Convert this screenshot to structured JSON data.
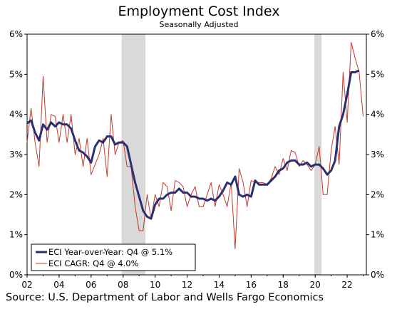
{
  "chart_data": {
    "type": "line",
    "title": "Employment Cost Index",
    "subtitle": "Seasonally Adjusted",
    "ylim": [
      0,
      6
    ],
    "xlim": [
      2002,
      2023.2
    ],
    "y_ticks": [
      "0%",
      "1%",
      "2%",
      "3%",
      "4%",
      "5%",
      "6%"
    ],
    "x_ticks": [
      "02",
      "04",
      "06",
      "08",
      "10",
      "12",
      "14",
      "16",
      "18",
      "20",
      "22"
    ],
    "recessions": [
      [
        2007.9,
        2009.4
      ],
      [
        2019.95,
        2020.4
      ]
    ],
    "colors": {
      "yoy": "#2b2f6f",
      "cagr": "#c0392b",
      "recession": "#d9d9d9"
    },
    "legend_position": "bottom-left",
    "series": [
      {
        "name": "ECI Year-over-Year: Q4 @ 5.1%",
        "values": [
          [
            2002.0,
            3.78
          ],
          [
            2002.25,
            3.85
          ],
          [
            2002.5,
            3.55
          ],
          [
            2002.75,
            3.35
          ],
          [
            2003.0,
            3.75
          ],
          [
            2003.25,
            3.62
          ],
          [
            2003.5,
            3.8
          ],
          [
            2003.75,
            3.7
          ],
          [
            2004.0,
            3.8
          ],
          [
            2004.25,
            3.75
          ],
          [
            2004.5,
            3.75
          ],
          [
            2004.75,
            3.65
          ],
          [
            2005.0,
            3.35
          ],
          [
            2005.25,
            3.1
          ],
          [
            2005.5,
            3.05
          ],
          [
            2005.75,
            2.95
          ],
          [
            2006.0,
            2.8
          ],
          [
            2006.25,
            3.2
          ],
          [
            2006.5,
            3.35
          ],
          [
            2006.75,
            3.3
          ],
          [
            2007.0,
            3.45
          ],
          [
            2007.25,
            3.45
          ],
          [
            2007.5,
            3.25
          ],
          [
            2007.75,
            3.3
          ],
          [
            2008.0,
            3.3
          ],
          [
            2008.25,
            3.2
          ],
          [
            2008.5,
            2.75
          ],
          [
            2008.75,
            2.3
          ],
          [
            2009.0,
            1.95
          ],
          [
            2009.25,
            1.6
          ],
          [
            2009.5,
            1.45
          ],
          [
            2009.75,
            1.4
          ],
          [
            2010.0,
            1.75
          ],
          [
            2010.25,
            1.9
          ],
          [
            2010.5,
            1.9
          ],
          [
            2010.75,
            2.0
          ],
          [
            2011.0,
            2.05
          ],
          [
            2011.25,
            2.05
          ],
          [
            2011.5,
            2.15
          ],
          [
            2011.75,
            2.05
          ],
          [
            2012.0,
            2.05
          ],
          [
            2012.25,
            1.95
          ],
          [
            2012.5,
            1.95
          ],
          [
            2012.75,
            1.9
          ],
          [
            2013.0,
            1.9
          ],
          [
            2013.25,
            1.85
          ],
          [
            2013.5,
            1.9
          ],
          [
            2013.75,
            1.85
          ],
          [
            2014.0,
            1.95
          ],
          [
            2014.25,
            2.1
          ],
          [
            2014.5,
            2.3
          ],
          [
            2014.75,
            2.25
          ],
          [
            2015.0,
            2.45
          ],
          [
            2015.25,
            2.0
          ],
          [
            2015.5,
            1.95
          ],
          [
            2015.75,
            2.0
          ],
          [
            2016.0,
            1.95
          ],
          [
            2016.25,
            2.35
          ],
          [
            2016.5,
            2.25
          ],
          [
            2016.75,
            2.25
          ],
          [
            2017.0,
            2.25
          ],
          [
            2017.25,
            2.35
          ],
          [
            2017.5,
            2.45
          ],
          [
            2017.75,
            2.6
          ],
          [
            2018.0,
            2.65
          ],
          [
            2018.25,
            2.8
          ],
          [
            2018.5,
            2.85
          ],
          [
            2018.75,
            2.85
          ],
          [
            2019.0,
            2.75
          ],
          [
            2019.25,
            2.75
          ],
          [
            2019.5,
            2.8
          ],
          [
            2019.75,
            2.7
          ],
          [
            2020.0,
            2.75
          ],
          [
            2020.25,
            2.75
          ],
          [
            2020.5,
            2.65
          ],
          [
            2020.75,
            2.5
          ],
          [
            2021.0,
            2.6
          ],
          [
            2021.25,
            2.85
          ],
          [
            2021.5,
            3.7
          ],
          [
            2021.75,
            4.0
          ],
          [
            2022.0,
            4.5
          ],
          [
            2022.25,
            5.05
          ],
          [
            2022.5,
            5.05
          ],
          [
            2022.75,
            5.1
          ]
        ]
      },
      {
        "name": "ECI CAGR: Q4 @ 4.0%",
        "values": [
          [
            2002.0,
            3.3
          ],
          [
            2002.25,
            4.15
          ],
          [
            2002.5,
            3.3
          ],
          [
            2002.75,
            2.7
          ],
          [
            2003.0,
            4.95
          ],
          [
            2003.25,
            3.3
          ],
          [
            2003.5,
            4.0
          ],
          [
            2003.75,
            3.95
          ],
          [
            2004.0,
            3.3
          ],
          [
            2004.25,
            4.0
          ],
          [
            2004.5,
            3.3
          ],
          [
            2004.75,
            4.0
          ],
          [
            2005.0,
            3.0
          ],
          [
            2005.25,
            3.4
          ],
          [
            2005.5,
            2.7
          ],
          [
            2005.75,
            3.4
          ],
          [
            2006.0,
            2.5
          ],
          [
            2006.25,
            2.75
          ],
          [
            2006.5,
            3.0
          ],
          [
            2006.75,
            3.4
          ],
          [
            2007.0,
            2.45
          ],
          [
            2007.25,
            4.0
          ],
          [
            2007.5,
            3.0
          ],
          [
            2007.75,
            3.3
          ],
          [
            2008.0,
            3.35
          ],
          [
            2008.25,
            2.7
          ],
          [
            2008.5,
            2.7
          ],
          [
            2008.75,
            1.7
          ],
          [
            2009.0,
            1.1
          ],
          [
            2009.25,
            1.1
          ],
          [
            2009.5,
            2.0
          ],
          [
            2009.75,
            1.4
          ],
          [
            2010.0,
            2.0
          ],
          [
            2010.25,
            1.7
          ],
          [
            2010.5,
            2.3
          ],
          [
            2010.75,
            2.2
          ],
          [
            2011.0,
            1.6
          ],
          [
            2011.25,
            2.35
          ],
          [
            2011.5,
            2.3
          ],
          [
            2011.75,
            2.2
          ],
          [
            2012.0,
            1.7
          ],
          [
            2012.25,
            2.0
          ],
          [
            2012.5,
            2.2
          ],
          [
            2012.75,
            1.7
          ],
          [
            2013.0,
            1.7
          ],
          [
            2013.25,
            2.0
          ],
          [
            2013.5,
            2.3
          ],
          [
            2013.75,
            1.7
          ],
          [
            2014.0,
            2.25
          ],
          [
            2014.25,
            2.0
          ],
          [
            2014.5,
            1.7
          ],
          [
            2014.75,
            2.3
          ],
          [
            2015.0,
            0.65
          ],
          [
            2015.25,
            2.65
          ],
          [
            2015.5,
            2.3
          ],
          [
            2015.75,
            1.7
          ],
          [
            2016.0,
            2.35
          ],
          [
            2016.25,
            2.3
          ],
          [
            2016.5,
            2.3
          ],
          [
            2016.75,
            2.3
          ],
          [
            2017.0,
            2.25
          ],
          [
            2017.25,
            2.4
          ],
          [
            2017.5,
            2.7
          ],
          [
            2017.75,
            2.5
          ],
          [
            2018.0,
            2.9
          ],
          [
            2018.25,
            2.6
          ],
          [
            2018.5,
            3.1
          ],
          [
            2018.75,
            3.05
          ],
          [
            2019.0,
            2.7
          ],
          [
            2019.25,
            2.85
          ],
          [
            2019.5,
            2.75
          ],
          [
            2019.75,
            2.6
          ],
          [
            2020.0,
            2.75
          ],
          [
            2020.25,
            3.2
          ],
          [
            2020.5,
            2.0
          ],
          [
            2020.75,
            2.0
          ],
          [
            2021.0,
            3.1
          ],
          [
            2021.25,
            3.7
          ],
          [
            2021.5,
            2.75
          ],
          [
            2021.75,
            5.05
          ],
          [
            2022.0,
            3.8
          ],
          [
            2022.25,
            5.8
          ],
          [
            2022.5,
            5.4
          ],
          [
            2022.75,
            5.05
          ],
          [
            2023.0,
            3.95
          ]
        ]
      }
    ],
    "source": "Source: U.S. Department of Labor and Wells Fargo Economics"
  }
}
